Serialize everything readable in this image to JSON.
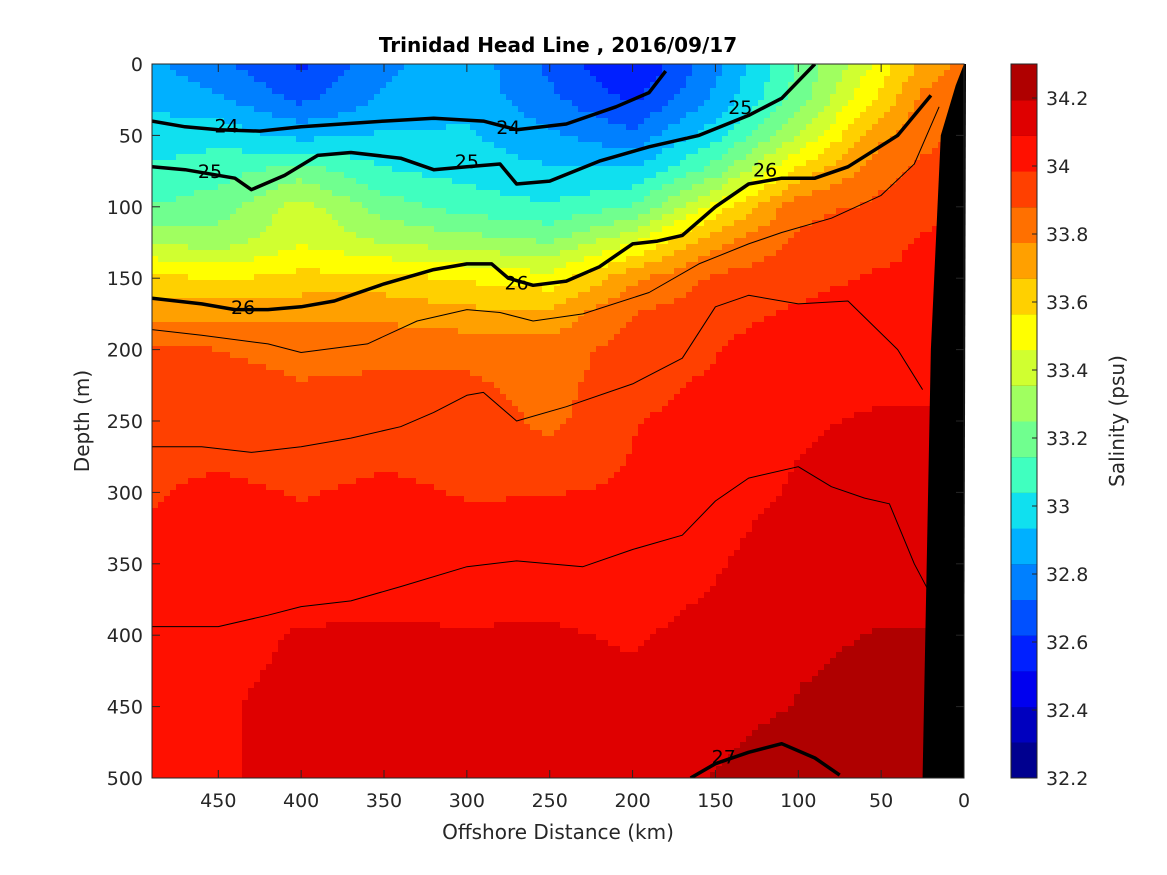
{
  "chart_data": {
    "type": "heatmap",
    "title": "Trinidad Head Line , 2016/09/17",
    "xlabel": "Offshore Distance (km)",
    "ylabel": "Depth (m)",
    "xlim": [
      490,
      0
    ],
    "ylim": [
      0,
      500
    ],
    "x_reversed": true,
    "y_reversed": true,
    "x_ticks": [
      450,
      400,
      350,
      300,
      250,
      200,
      150,
      100,
      50,
      0
    ],
    "y_ticks": [
      0,
      50,
      100,
      150,
      200,
      250,
      300,
      350,
      400,
      450,
      500
    ],
    "colorbar": {
      "label": "Salinity (psu)",
      "range": [
        32.2,
        34.3
      ],
      "ticks": [
        32.2,
        32.4,
        32.6,
        32.8,
        33,
        33.2,
        33.4,
        33.6,
        33.8,
        34,
        34.2
      ],
      "levels": [
        "#00008f",
        "#0000bf",
        "#0000ef",
        "#0020ff",
        "#0050ff",
        "#0080ff",
        "#00b0ff",
        "#10e0ef",
        "#40ffbf",
        "#70ff8f",
        "#a0ff60",
        "#d0ff30",
        "#ffff00",
        "#ffd000",
        "#ffa000",
        "#ff7000",
        "#ff4000",
        "#ff1000",
        "#df0000",
        "#af0000"
      ]
    },
    "salinity_field": {
      "distance_km": [
        490,
        450,
        400,
        350,
        300,
        250,
        200,
        150,
        100,
        50,
        25,
        0
      ],
      "depth_m": [
        0,
        25,
        50,
        75,
        100,
        125,
        150,
        175,
        200,
        250,
        300,
        350,
        400,
        450,
        500
      ],
      "values": [
        [
          32.85,
          32.75,
          32.6,
          32.8,
          32.9,
          32.7,
          32.5,
          32.8,
          33.15,
          33.5,
          33.7,
          33.8
        ],
        [
          32.9,
          32.85,
          32.7,
          32.85,
          32.9,
          32.75,
          32.6,
          32.85,
          33.2,
          33.6,
          33.8,
          33.85
        ],
        [
          33.0,
          33.0,
          32.9,
          32.95,
          32.95,
          32.85,
          32.75,
          33.0,
          33.35,
          33.75,
          33.85,
          33.9
        ],
        [
          33.05,
          33.1,
          33.2,
          33.05,
          33.0,
          32.95,
          32.95,
          33.2,
          33.6,
          33.85,
          33.9,
          33.95
        ],
        [
          33.15,
          33.2,
          33.4,
          33.2,
          33.1,
          33.05,
          33.15,
          33.5,
          33.85,
          33.9,
          33.95,
          34.0
        ],
        [
          33.35,
          33.3,
          33.45,
          33.35,
          33.3,
          33.25,
          33.45,
          33.75,
          33.9,
          33.95,
          34.0,
          34.0
        ],
        [
          33.6,
          33.55,
          33.6,
          33.6,
          33.55,
          33.5,
          33.75,
          33.9,
          33.95,
          34.0,
          34.0,
          34.05
        ],
        [
          33.75,
          33.75,
          33.75,
          33.75,
          33.7,
          33.7,
          33.88,
          33.95,
          34.0,
          34.05,
          34.05,
          34.05
        ],
        [
          33.9,
          33.88,
          33.85,
          33.85,
          33.85,
          33.82,
          33.93,
          33.98,
          34.05,
          34.05,
          34.05,
          34.05
        ],
        [
          33.95,
          33.95,
          33.92,
          33.95,
          33.95,
          33.85,
          33.98,
          34.02,
          34.08,
          34.1,
          34.1,
          34.1
        ],
        [
          33.98,
          34.0,
          33.98,
          34.0,
          33.98,
          33.98,
          34.0,
          34.05,
          34.1,
          34.12,
          34.12,
          34.12
        ],
        [
          34.0,
          34.02,
          34.02,
          34.05,
          34.02,
          34.05,
          34.03,
          34.08,
          34.15,
          34.15,
          34.15,
          34.15
        ],
        [
          34.02,
          34.05,
          34.1,
          34.1,
          34.1,
          34.1,
          34.08,
          34.12,
          34.18,
          34.2,
          34.2,
          34.2
        ],
        [
          34.03,
          34.08,
          34.12,
          34.12,
          34.12,
          34.12,
          34.12,
          34.15,
          34.2,
          34.22,
          34.22,
          34.22
        ],
        [
          34.05,
          34.08,
          34.12,
          34.13,
          34.15,
          34.15,
          34.15,
          34.2,
          34.28,
          34.22,
          34.22,
          34.22
        ]
      ]
    },
    "density_contours": [
      {
        "label": "24",
        "bold": true,
        "points": [
          [
            490,
            40
          ],
          [
            470,
            44
          ],
          [
            450,
            46
          ],
          [
            425,
            47
          ],
          [
            400,
            44
          ],
          [
            350,
            40
          ],
          [
            320,
            38
          ],
          [
            290,
            40
          ],
          [
            270,
            46
          ],
          [
            240,
            42
          ],
          [
            210,
            30
          ],
          [
            190,
            20
          ],
          [
            180,
            5
          ]
        ]
      },
      {
        "label": "25",
        "bold": true,
        "points": [
          [
            490,
            72
          ],
          [
            470,
            74
          ],
          [
            440,
            80
          ],
          [
            430,
            88
          ],
          [
            410,
            78
          ],
          [
            390,
            64
          ],
          [
            370,
            62
          ],
          [
            340,
            66
          ],
          [
            320,
            74
          ],
          [
            300,
            72
          ],
          [
            280,
            70
          ],
          [
            270,
            84
          ],
          [
            250,
            82
          ],
          [
            220,
            68
          ],
          [
            190,
            58
          ],
          [
            160,
            50
          ],
          [
            130,
            36
          ],
          [
            110,
            24
          ],
          [
            90,
            0
          ]
        ]
      },
      {
        "label": "26",
        "bold": true,
        "points": [
          [
            490,
            164
          ],
          [
            460,
            168
          ],
          [
            440,
            172
          ],
          [
            420,
            172
          ],
          [
            400,
            170
          ],
          [
            380,
            166
          ],
          [
            350,
            154
          ],
          [
            320,
            144
          ],
          [
            300,
            140
          ],
          [
            285,
            140
          ],
          [
            275,
            150
          ],
          [
            260,
            155
          ],
          [
            240,
            152
          ],
          [
            220,
            142
          ],
          [
            200,
            126
          ],
          [
            185,
            124
          ],
          [
            170,
            120
          ],
          [
            150,
            100
          ],
          [
            130,
            84
          ],
          [
            110,
            80
          ],
          [
            90,
            80
          ],
          [
            70,
            72
          ],
          [
            40,
            50
          ],
          [
            20,
            22
          ]
        ]
      },
      {
        "label": "27",
        "bold": true,
        "points": [
          [
            165,
            500
          ],
          [
            150,
            490
          ],
          [
            130,
            482
          ],
          [
            110,
            476
          ],
          [
            90,
            486
          ],
          [
            75,
            498
          ]
        ]
      },
      {
        "label": "",
        "bold": false,
        "points": [
          [
            490,
            186
          ],
          [
            460,
            190
          ],
          [
            420,
            196
          ],
          [
            400,
            202
          ],
          [
            360,
            196
          ],
          [
            330,
            180
          ],
          [
            300,
            172
          ],
          [
            280,
            174
          ],
          [
            260,
            180
          ],
          [
            230,
            175
          ],
          [
            190,
            160
          ],
          [
            160,
            140
          ],
          [
            130,
            126
          ],
          [
            110,
            118
          ],
          [
            80,
            108
          ],
          [
            50,
            92
          ],
          [
            30,
            70
          ],
          [
            15,
            30
          ]
        ]
      },
      {
        "label": "",
        "bold": false,
        "points": [
          [
            490,
            268
          ],
          [
            460,
            268
          ],
          [
            430,
            272
          ],
          [
            400,
            268
          ],
          [
            370,
            262
          ],
          [
            340,
            254
          ],
          [
            320,
            244
          ],
          [
            300,
            232
          ],
          [
            290,
            230
          ],
          [
            270,
            250
          ],
          [
            240,
            240
          ],
          [
            200,
            224
          ],
          [
            170,
            206
          ],
          [
            150,
            170
          ],
          [
            130,
            162
          ],
          [
            100,
            168
          ],
          [
            70,
            166
          ],
          [
            40,
            200
          ],
          [
            25,
            228
          ]
        ]
      },
      {
        "label": "",
        "bold": false,
        "points": [
          [
            490,
            394
          ],
          [
            450,
            394
          ],
          [
            420,
            386
          ],
          [
            400,
            380
          ],
          [
            370,
            376
          ],
          [
            340,
            366
          ],
          [
            300,
            352
          ],
          [
            270,
            348
          ],
          [
            230,
            352
          ],
          [
            200,
            340
          ],
          [
            170,
            330
          ],
          [
            150,
            306
          ],
          [
            130,
            290
          ],
          [
            100,
            282
          ],
          [
            80,
            296
          ],
          [
            60,
            304
          ],
          [
            45,
            308
          ],
          [
            30,
            350
          ],
          [
            20,
            372
          ]
        ]
      }
    ]
  }
}
